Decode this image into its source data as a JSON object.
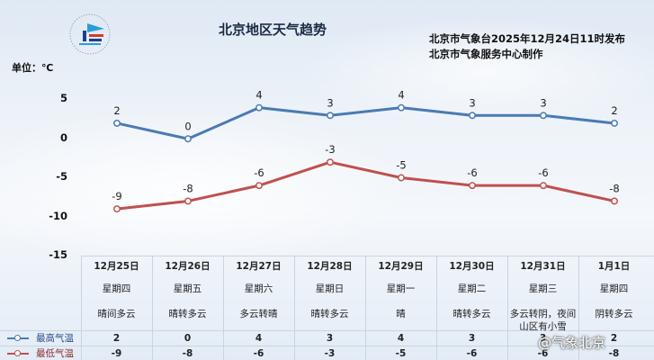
{
  "header": {
    "title": "北京地区天气趋势",
    "publish_line1": "北京市气象台2025年12月24日11时发布",
    "publish_line2": "北京市气象服务中心制作",
    "unit_label": "单位：℃"
  },
  "colors": {
    "high": "#4a7ab5",
    "low": "#c0504d"
  },
  "chart_data": {
    "type": "line",
    "title": "北京地区天气趋势",
    "ylabel": "单位：℃",
    "ylim": [
      -15,
      5
    ],
    "yticks": [
      "5",
      "0",
      "-5",
      "-10",
      "-15"
    ],
    "categories": [
      "12月25日",
      "12月26日",
      "12月27日",
      "12月28日",
      "12月29日",
      "12月30日",
      "12月31日",
      "1月1日"
    ],
    "series": [
      {
        "name": "最高气温",
        "values": [
          2,
          0,
          4,
          3,
          4,
          3,
          3,
          2
        ]
      },
      {
        "name": "最低气温",
        "values": [
          -9,
          -8,
          -6,
          -3,
          -5,
          -6,
          -6,
          -8
        ]
      }
    ],
    "grid": false,
    "legend": "bottom-left"
  },
  "days": [
    {
      "date": "12月25日",
      "weekday": "星期四",
      "cond": "晴间多云"
    },
    {
      "date": "12月26日",
      "weekday": "星期五",
      "cond": "晴转多云"
    },
    {
      "date": "12月27日",
      "weekday": "星期六",
      "cond": "多云转晴"
    },
    {
      "date": "12月28日",
      "weekday": "星期日",
      "cond": "晴转多云"
    },
    {
      "date": "12月29日",
      "weekday": "星期一",
      "cond": "晴"
    },
    {
      "date": "12月30日",
      "weekday": "星期二",
      "cond": "晴转多云"
    },
    {
      "date": "12月31日",
      "weekday": "星期三",
      "cond": "多云转阴，夜间山区有小雪"
    },
    {
      "date": "1月1日",
      "weekday": "星期四",
      "cond": "阴转多云"
    }
  ],
  "legend": {
    "high": "最高气温",
    "low": "最低气温"
  },
  "watermark": "@气象北京"
}
